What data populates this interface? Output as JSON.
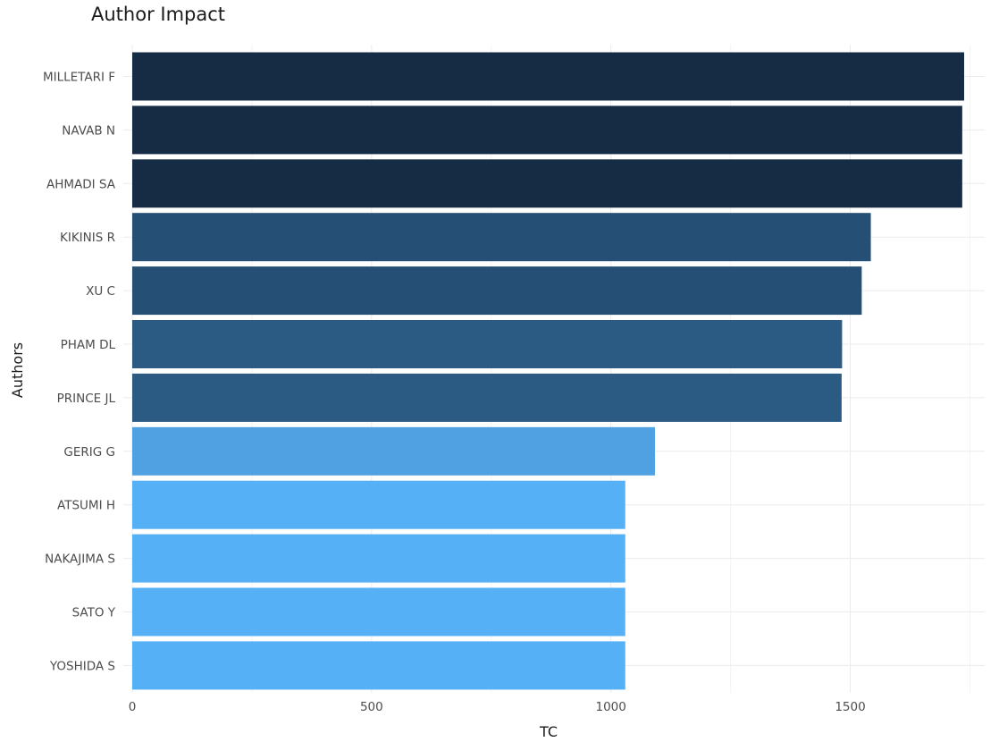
{
  "chart_data": {
    "type": "bar",
    "orientation": "horizontal",
    "title": "Author Impact",
    "xlabel": "TC",
    "ylabel": "Authors",
    "categories": [
      "MILLETARI F",
      "NAVAB N",
      "AHMADI SA",
      "KIKINIS R",
      "XU C",
      "PHAM DL",
      "PRINCE JL",
      "GERIG G",
      "ATSUMI H",
      "NAKAJIMA S",
      "SATO Y",
      "YOSHIDA S"
    ],
    "values": [
      1738,
      1734,
      1734,
      1543,
      1524,
      1483,
      1482,
      1092,
      1030,
      1030,
      1030,
      1030
    ],
    "colors": [
      "#162c45",
      "#162c45",
      "#162c45",
      "#254f74",
      "#254f74",
      "#2b5a82",
      "#2b5a82",
      "#4fa1e2",
      "#55b0f5",
      "#55b0f5",
      "#55b0f5",
      "#55b0f5"
    ],
    "xlim": [
      0,
      1760
    ],
    "xticks": [
      0,
      500,
      1000,
      1500
    ],
    "xtick_labels": [
      "0",
      "500",
      "1000",
      "1500"
    ],
    "grid": true,
    "legend": "none"
  }
}
